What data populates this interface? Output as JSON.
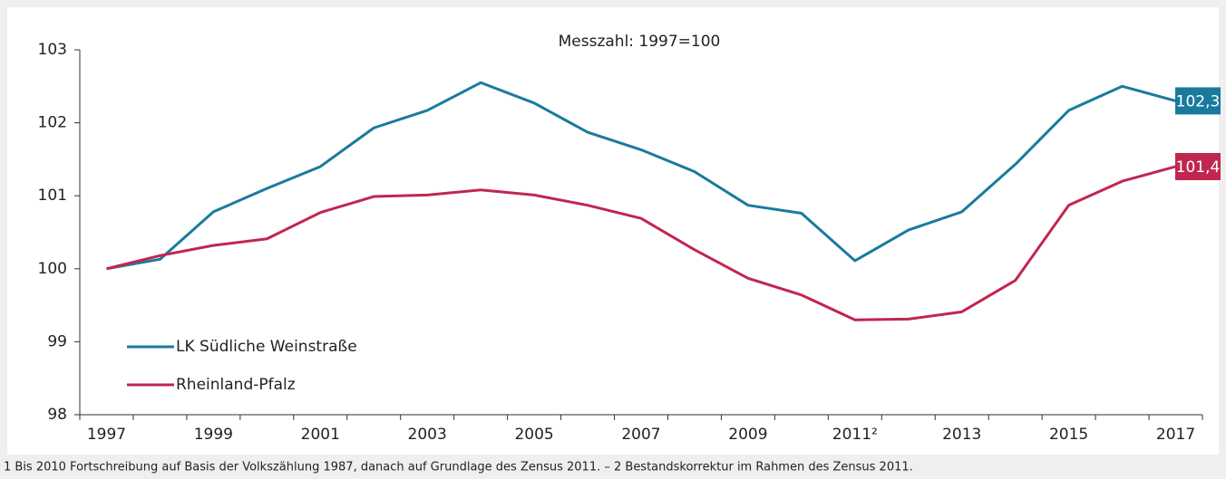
{
  "chart_data": {
    "type": "line",
    "title": "Messzahl: 1997=100",
    "footnote": "1 Bis 2010 Fortschreibung auf Basis der Volkszählung 1987, danach auf Grundlage des Zensus 2011. – 2 Bestandskorrektur im  Rahmen des Zensus 2011.",
    "categories": [
      "1997",
      null,
      "1999",
      null,
      "2001",
      null,
      "2003",
      null,
      "2005",
      null,
      "2007",
      null,
      "2009",
      null,
      "2011²",
      null,
      "2013",
      null,
      "2015",
      null,
      "2017"
    ],
    "series": [
      {
        "name": "LK Südliche Weinstraße",
        "color": "#1a7a9e",
        "end_label": "102,3",
        "values": [
          100.0,
          100.13,
          100.78,
          101.1,
          101.4,
          101.93,
          102.17,
          102.55,
          102.27,
          101.87,
          101.63,
          101.33,
          100.87,
          100.76,
          100.11,
          100.53,
          100.78,
          101.43,
          102.17,
          102.5,
          102.3
        ]
      },
      {
        "name": "Rheinland-Pfalz",
        "color": "#c1264f",
        "end_label": "101,4",
        "values": [
          100.0,
          100.18,
          100.32,
          100.41,
          100.77,
          100.99,
          101.01,
          101.08,
          101.01,
          100.87,
          100.69,
          100.26,
          99.87,
          99.64,
          99.3,
          99.31,
          99.41,
          99.84,
          100.87,
          101.2,
          101.4
        ]
      }
    ],
    "ylim": [
      98,
      103
    ],
    "yticks": [
      98,
      99,
      100,
      101,
      102,
      103
    ],
    "grid": false,
    "legend": "lower left"
  }
}
